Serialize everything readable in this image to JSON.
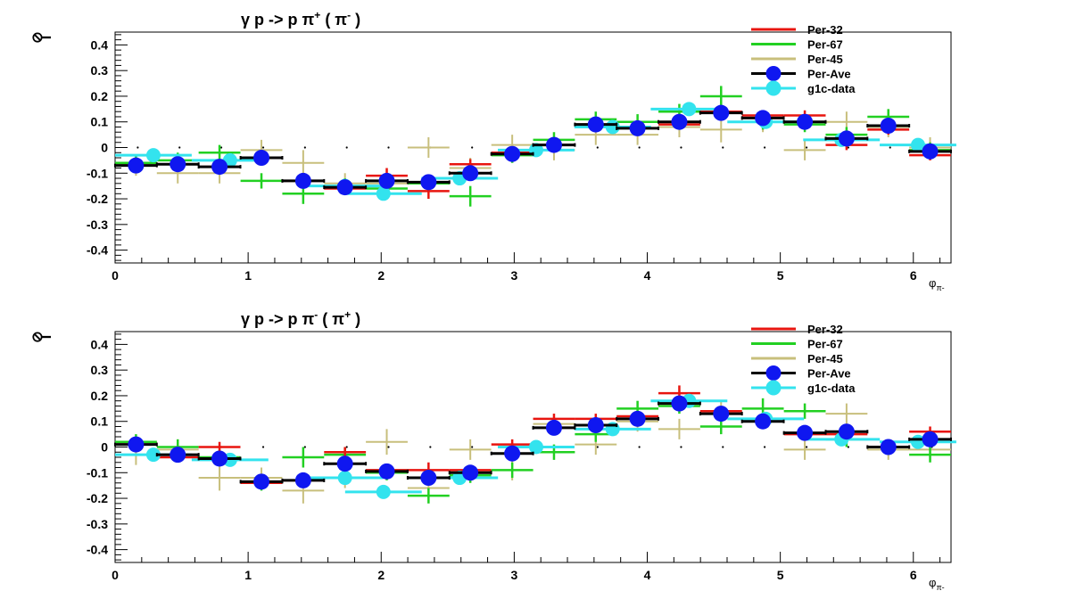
{
  "colors": {
    "Per-32": "#e8150f",
    "Per-67": "#22d022",
    "Per-45": "#c8bf7c",
    "Per-Ave": "#000000",
    "Per-Ave-marker": "#0f17f0",
    "g1c-data": "#33e3ee"
  },
  "chart_data": [
    {
      "type": "scatter",
      "title": "γ p -> p π+ ( π- )",
      "title_parts": {
        "base": "γ p -> p π",
        "sup1": "+",
        "mid": " ( π",
        "sup2": "-",
        "end": " )"
      },
      "ylabel": "I",
      "ylabel_accent": "⊘",
      "xlabel": "φ",
      "xlabel_sub": "π-",
      "xlim": [
        0,
        6.2832
      ],
      "ylim": [
        -0.45,
        0.45
      ],
      "xticks": [
        0,
        1,
        2,
        3,
        4,
        5,
        6
      ],
      "xtick_labels": [
        "0",
        "1",
        "2",
        "3",
        "4",
        "5",
        "6"
      ],
      "yticks": [
        0.4,
        0.3,
        0.2,
        0.1,
        0,
        -0.1,
        -0.2,
        -0.3,
        -0.4
      ],
      "ytick_labels": [
        "0.4",
        "0.3",
        "0.2",
        "0.1",
        "0",
        "-0.1",
        "-0.2",
        "-0.3",
        "-0.4"
      ],
      "legend_position": "top-right",
      "reference_dots": {
        "y": 0,
        "x": [
          0.157,
          0.471,
          0.785,
          1.1,
          1.414,
          1.728,
          2.042,
          2.356,
          2.67,
          2.985,
          3.299,
          3.613,
          3.927,
          4.241,
          4.555,
          4.869,
          5.184,
          5.498,
          5.812,
          6.126
        ]
      },
      "series": [
        {
          "name": "Per-32",
          "x": [
            0.157,
            0.471,
            0.785,
            1.1,
            1.414,
            1.728,
            2.042,
            2.356,
            2.67,
            2.985,
            3.299,
            3.613,
            3.927,
            4.241,
            4.555,
            4.869,
            5.184,
            5.498,
            5.812,
            6.126
          ],
          "y": [
            -0.07,
            -0.065,
            -0.075,
            -0.04,
            -0.13,
            -0.16,
            -0.11,
            -0.17,
            -0.065,
            -0.02,
            0.01,
            0.09,
            0.075,
            0.09,
            0.14,
            0.125,
            0.125,
            0.01,
            0.07,
            -0.03
          ],
          "yerr": [
            0.02,
            0.02,
            0.02,
            0.02,
            0.02,
            0.02,
            0.03,
            0.03,
            0.02,
            0.02,
            0.02,
            0.02,
            0.02,
            0.02,
            0.02,
            0.02,
            0.02,
            0.02,
            0.02,
            0.02
          ]
        },
        {
          "name": "Per-67",
          "x": [
            0.157,
            0.471,
            0.785,
            1.1,
            1.414,
            1.728,
            2.042,
            2.356,
            2.67,
            2.985,
            3.299,
            3.613,
            3.927,
            4.241,
            4.555,
            4.869,
            5.184,
            5.498,
            5.812,
            6.126
          ],
          "y": [
            -0.06,
            -0.05,
            -0.02,
            -0.13,
            -0.18,
            -0.15,
            -0.16,
            -0.14,
            -0.19,
            -0.03,
            0.03,
            0.11,
            0.1,
            0.14,
            0.2,
            0.1,
            0.09,
            0.05,
            0.12,
            -0.01
          ],
          "yerr": [
            0.03,
            0.03,
            0.03,
            0.03,
            0.04,
            0.03,
            0.03,
            0.03,
            0.04,
            0.03,
            0.03,
            0.03,
            0.03,
            0.03,
            0.04,
            0.03,
            0.03,
            0.03,
            0.03,
            0.03
          ]
        },
        {
          "name": "Per-45",
          "x": [
            0.157,
            0.471,
            0.785,
            1.1,
            1.414,
            1.728,
            2.042,
            2.356,
            2.67,
            2.985,
            3.299,
            3.613,
            3.927,
            4.241,
            4.555,
            4.869,
            5.184,
            5.498,
            5.812,
            6.126
          ],
          "y": [
            -0.07,
            -0.1,
            -0.1,
            -0.01,
            -0.06,
            -0.14,
            -0.14,
            0.0,
            -0.08,
            0.01,
            -0.01,
            0.05,
            0.05,
            0.08,
            0.07,
            0.1,
            -0.01,
            0.1,
            0.08,
            0.0
          ],
          "yerr": [
            0.04,
            0.04,
            0.04,
            0.04,
            0.05,
            0.04,
            0.04,
            0.04,
            0.04,
            0.04,
            0.04,
            0.04,
            0.04,
            0.04,
            0.05,
            0.04,
            0.04,
            0.04,
            0.04,
            0.04
          ]
        },
        {
          "name": "g1c-data",
          "x": [
            0.288,
            0.864,
            1.728,
            2.017,
            2.59,
            3.165,
            3.74,
            4.314,
            4.89,
            5.46,
            6.035
          ],
          "y": [
            -0.03,
            -0.05,
            -0.15,
            -0.18,
            -0.12,
            -0.01,
            0.08,
            0.15,
            0.1,
            0.03,
            0.01
          ],
          "halfwidth": 0.288,
          "yerr": [
            0.01,
            0.01,
            0.01,
            0.01,
            0.01,
            0.01,
            0.01,
            0.01,
            0.01,
            0.01,
            0.01
          ]
        },
        {
          "name": "Per-Ave",
          "x": [
            0.157,
            0.471,
            0.785,
            1.1,
            1.414,
            1.728,
            2.042,
            2.356,
            2.67,
            2.985,
            3.299,
            3.613,
            3.927,
            4.241,
            4.555,
            4.869,
            5.184,
            5.498,
            5.812,
            6.126
          ],
          "y": [
            -0.07,
            -0.065,
            -0.075,
            -0.04,
            -0.13,
            -0.155,
            -0.13,
            -0.135,
            -0.1,
            -0.025,
            0.01,
            0.09,
            0.075,
            0.1,
            0.135,
            0.115,
            0.1,
            0.035,
            0.085,
            -0.015
          ],
          "yerr": [
            0.01,
            0.01,
            0.01,
            0.01,
            0.01,
            0.01,
            0.01,
            0.01,
            0.01,
            0.01,
            0.01,
            0.01,
            0.01,
            0.01,
            0.01,
            0.01,
            0.01,
            0.01,
            0.01,
            0.01
          ]
        }
      ]
    },
    {
      "type": "scatter",
      "title": "γ p -> p π- ( π+ )",
      "title_parts": {
        "base": "γ p -> p π",
        "sup1": "-",
        "mid": " ( π",
        "sup2": "+",
        "end": " )"
      },
      "ylabel": "I",
      "ylabel_accent": "⊘",
      "xlabel": "φ",
      "xlabel_sub": "π-",
      "xlim": [
        0,
        6.2832
      ],
      "ylim": [
        -0.45,
        0.45
      ],
      "xticks": [
        0,
        1,
        2,
        3,
        4,
        5,
        6
      ],
      "xtick_labels": [
        "0",
        "1",
        "2",
        "3",
        "4",
        "5",
        "6"
      ],
      "yticks": [
        0.4,
        0.3,
        0.2,
        0.1,
        0,
        -0.1,
        -0.2,
        -0.3,
        -0.4
      ],
      "ytick_labels": [
        "0.4",
        "0.3",
        "0.2",
        "0.1",
        "0",
        "-0.1",
        "-0.2",
        "-0.3",
        "-0.4"
      ],
      "legend_position": "top-right",
      "reference_dots": {
        "y": 0,
        "x": [
          0.157,
          0.471,
          0.785,
          1.1,
          1.414,
          1.728,
          2.042,
          2.356,
          2.67,
          2.985,
          3.299,
          3.613,
          3.927,
          4.241,
          4.555,
          4.869,
          5.184,
          5.498,
          5.812,
          6.126
        ]
      },
      "series": [
        {
          "name": "Per-32",
          "x": [
            0.157,
            0.471,
            0.785,
            1.1,
            1.414,
            1.728,
            2.042,
            2.356,
            2.67,
            2.985,
            3.299,
            3.613,
            3.927,
            4.241,
            4.555,
            4.869,
            5.184,
            5.498,
            5.812,
            6.126
          ],
          "y": [
            0.01,
            -0.04,
            0.0,
            -0.14,
            -0.13,
            -0.02,
            -0.09,
            -0.09,
            -0.09,
            0.01,
            0.11,
            0.11,
            0.12,
            0.21,
            0.14,
            0.1,
            0.05,
            0.05,
            0.0,
            0.06
          ],
          "yerr": [
            0.02,
            0.02,
            0.02,
            0.02,
            0.02,
            0.02,
            0.02,
            0.03,
            0.02,
            0.02,
            0.02,
            0.02,
            0.02,
            0.03,
            0.02,
            0.02,
            0.02,
            0.02,
            0.02,
            0.02
          ]
        },
        {
          "name": "Per-67",
          "x": [
            0.157,
            0.471,
            0.785,
            1.1,
            1.414,
            1.728,
            2.042,
            2.356,
            2.67,
            2.985,
            3.299,
            3.613,
            3.927,
            4.241,
            4.555,
            4.869,
            5.184,
            5.498,
            5.812,
            6.126
          ],
          "y": [
            0.02,
            0.0,
            -0.04,
            -0.14,
            -0.04,
            -0.03,
            -0.1,
            -0.19,
            -0.11,
            -0.09,
            -0.02,
            0.05,
            0.15,
            0.16,
            0.08,
            0.15,
            0.14,
            0.03,
            0.0,
            -0.03
          ],
          "yerr": [
            0.03,
            0.03,
            0.03,
            0.03,
            0.04,
            0.03,
            0.03,
            0.03,
            0.03,
            0.03,
            0.03,
            0.03,
            0.03,
            0.03,
            0.03,
            0.04,
            0.03,
            0.03,
            0.03,
            0.03
          ]
        },
        {
          "name": "Per-45",
          "x": [
            0.157,
            0.471,
            0.785,
            1.1,
            1.414,
            1.728,
            2.042,
            2.356,
            2.67,
            2.985,
            3.299,
            3.613,
            3.927,
            4.241,
            4.555,
            4.869,
            5.184,
            5.498,
            5.812,
            6.126
          ],
          "y": [
            -0.03,
            -0.01,
            -0.12,
            -0.12,
            -0.17,
            -0.12,
            0.02,
            -0.16,
            -0.01,
            -0.09,
            0.09,
            0.01,
            0.1,
            0.07,
            0.14,
            0.11,
            -0.01,
            0.13,
            -0.01,
            -0.01
          ],
          "yerr": [
            0.04,
            0.04,
            0.05,
            0.04,
            0.05,
            0.04,
            0.05,
            0.04,
            0.04,
            0.04,
            0.04,
            0.04,
            0.04,
            0.04,
            0.04,
            0.04,
            0.04,
            0.04,
            0.04,
            0.04
          ]
        },
        {
          "name": "g1c-data",
          "x": [
            0.288,
            0.864,
            1.728,
            2.017,
            2.59,
            3.165,
            3.74,
            4.314,
            4.89,
            5.46,
            6.035
          ],
          "y": [
            -0.03,
            -0.05,
            -0.12,
            -0.175,
            -0.12,
            0.0,
            0.07,
            0.18,
            0.11,
            0.03,
            0.02
          ],
          "halfwidth": 0.288,
          "yerr": [
            0.01,
            0.01,
            0.01,
            0.01,
            0.01,
            0.01,
            0.01,
            0.01,
            0.01,
            0.01,
            0.01
          ]
        },
        {
          "name": "Per-Ave",
          "x": [
            0.157,
            0.471,
            0.785,
            1.1,
            1.414,
            1.728,
            2.042,
            2.356,
            2.67,
            2.985,
            3.299,
            3.613,
            3.927,
            4.241,
            4.555,
            4.869,
            5.184,
            5.498,
            5.812,
            6.126
          ],
          "y": [
            0.01,
            -0.03,
            -0.045,
            -0.135,
            -0.13,
            -0.065,
            -0.095,
            -0.12,
            -0.1,
            -0.025,
            0.075,
            0.085,
            0.11,
            0.17,
            0.13,
            0.1,
            0.055,
            0.06,
            0.0,
            0.03
          ],
          "yerr": [
            0.01,
            0.01,
            0.01,
            0.01,
            0.01,
            0.01,
            0.01,
            0.01,
            0.01,
            0.01,
            0.01,
            0.01,
            0.01,
            0.01,
            0.01,
            0.01,
            0.01,
            0.01,
            0.01,
            0.01
          ]
        }
      ]
    }
  ]
}
